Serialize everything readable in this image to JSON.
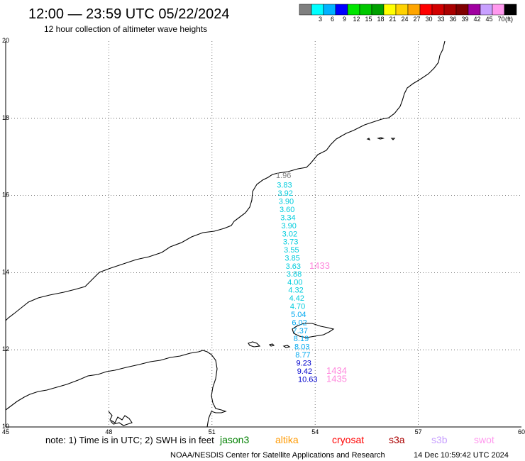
{
  "header": {
    "title": "12:00 — 23:59 UTC 05/22/2024",
    "subtitle": "12 hour collection of altimeter wave heights"
  },
  "legend": {
    "unit": "(ft)",
    "bins": [
      {
        "label": "",
        "color": "#7f7f7f"
      },
      {
        "label": "3",
        "color": "#00ffff"
      },
      {
        "label": "6",
        "color": "#00b2ff"
      },
      {
        "label": "9",
        "color": "#0000ff"
      },
      {
        "label": "12",
        "color": "#00e600"
      },
      {
        "label": "15",
        "color": "#00c800"
      },
      {
        "label": "18",
        "color": "#00a000"
      },
      {
        "label": "21",
        "color": "#ffff00"
      },
      {
        "label": "24",
        "color": "#ffd200"
      },
      {
        "label": "27",
        "color": "#ffa500"
      },
      {
        "label": "30",
        "color": "#ff0000"
      },
      {
        "label": "33",
        "color": "#d20000"
      },
      {
        "label": "36",
        "color": "#aa0000"
      },
      {
        "label": "39",
        "color": "#800000"
      },
      {
        "label": "42",
        "color": "#a000a0"
      },
      {
        "label": "45",
        "color": "#c8a0ff"
      },
      {
        "label": "70",
        "color": "#ff99ee"
      },
      {
        "label": "",
        "color": "#000000"
      }
    ]
  },
  "map": {
    "lon_ticks": [
      "45",
      "48",
      "51",
      "54",
      "57",
      "60"
    ],
    "lat_ticks": [
      "20",
      "18",
      "16",
      "14",
      "12",
      "10"
    ],
    "lon_range": [
      45,
      60
    ],
    "lat_range": [
      10,
      20
    ]
  },
  "observations": [
    {
      "value": "1.96",
      "lat": 16.45,
      "color": "#7f7f7f"
    },
    {
      "value": "3.83",
      "lat": 16.2,
      "color": "#00ccdd"
    },
    {
      "value": "3.92",
      "lat": 15.99,
      "color": "#00ccdd"
    },
    {
      "value": "3.90",
      "lat": 15.78,
      "color": "#00ccdd"
    },
    {
      "value": "3.60",
      "lat": 15.57,
      "color": "#00ccdd"
    },
    {
      "value": "3.34",
      "lat": 15.36,
      "color": "#00ccdd"
    },
    {
      "value": "3.90",
      "lat": 15.15,
      "color": "#00ccdd"
    },
    {
      "value": "3.02",
      "lat": 14.94,
      "color": "#00ccdd"
    },
    {
      "value": "3.73",
      "lat": 14.73,
      "color": "#00ccdd"
    },
    {
      "value": "3.55",
      "lat": 14.52,
      "color": "#00ccdd"
    },
    {
      "value": "3.85",
      "lat": 14.31,
      "color": "#00ccdd"
    },
    {
      "value": "3.63",
      "lat": 14.1,
      "color": "#00ccdd"
    },
    {
      "value": "3.88",
      "lat": 13.9,
      "color": "#00ccdd"
    },
    {
      "value": "4.00",
      "lat": 13.69,
      "color": "#00ccdd"
    },
    {
      "value": "4.32",
      "lat": 13.48,
      "color": "#00ccdd"
    },
    {
      "value": "4.42",
      "lat": 13.27,
      "color": "#00ccdd"
    },
    {
      "value": "4.70",
      "lat": 13.06,
      "color": "#00ccdd"
    },
    {
      "value": "5.04",
      "lat": 12.85,
      "color": "#00a8f0"
    },
    {
      "value": "6.02",
      "lat": 12.64,
      "color": "#00a8f0"
    },
    {
      "value": "7.37",
      "lat": 12.43,
      "color": "#00a8f0"
    },
    {
      "value": "8.19",
      "lat": 12.22,
      "color": "#00a8f0"
    },
    {
      "value": "8.03",
      "lat": 12.01,
      "color": "#00a8f0"
    },
    {
      "value": "8.77",
      "lat": 11.8,
      "color": "#00a8f0"
    },
    {
      "value": "9.23",
      "lat": 11.59,
      "color": "#0000cc"
    },
    {
      "value": "9.42",
      "lat": 11.38,
      "color": "#0000cc"
    },
    {
      "value": "10.63",
      "lat": 11.17,
      "color": "#0000cc"
    }
  ],
  "pass_times": [
    {
      "label": "1433",
      "lat": 14.1,
      "color": "#ff88dd"
    },
    {
      "label": "1434",
      "lat": 11.38,
      "color": "#ff88dd"
    },
    {
      "label": "1435",
      "lat": 11.17,
      "color": "#ff88dd"
    }
  ],
  "note": {
    "text": "note: 1) Time is in UTC; 2) SWH is in feet",
    "satellites": [
      {
        "name": "jason3",
        "color": "#008000"
      },
      {
        "name": "altika",
        "color": "#ff9900"
      },
      {
        "name": "cryosat",
        "color": "#ff0000"
      },
      {
        "name": "s3a",
        "color": "#aa0000"
      },
      {
        "name": "s3b",
        "color": "#c8a0ff"
      },
      {
        "name": "swot",
        "color": "#ff99ee"
      }
    ]
  },
  "footer": {
    "credit": "NOAA/NESDIS Center for Satellite Applications and Research",
    "timestamp": "14 Dec 10:59:42 UTC 2024"
  }
}
